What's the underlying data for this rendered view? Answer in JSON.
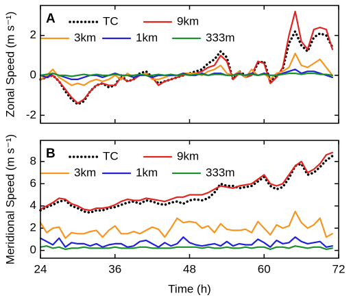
{
  "chart_data": [
    {
      "type": "line",
      "panel_label": "A",
      "ylabel": "Zonal Speed (m s⁻¹)",
      "x": [
        24,
        25,
        26,
        27,
        28,
        29,
        30,
        31,
        32,
        33,
        34,
        35,
        36,
        37,
        38,
        39,
        40,
        41,
        42,
        43,
        44,
        45,
        46,
        47,
        48,
        49,
        50,
        51,
        52,
        53,
        54,
        55,
        56,
        57,
        58,
        59,
        60,
        61,
        62,
        63,
        64,
        65,
        66,
        67,
        68,
        69,
        70,
        71
      ],
      "xlim": [
        24,
        72
      ],
      "xticks": [
        24,
        36,
        48,
        60,
        72
      ],
      "xtick_labels": false,
      "ylim": [
        -2.4,
        3.5
      ],
      "yticks": [
        -2,
        0,
        2
      ],
      "series": [
        {
          "name": "TC",
          "color": "#000000",
          "dash": "dotted",
          "values": [
            -0.2,
            -0.1,
            0.0,
            -0.3,
            -0.8,
            -1.2,
            -1.45,
            -1.3,
            -0.8,
            -0.5,
            -0.4,
            -0.6,
            -0.5,
            0.0,
            -0.3,
            -0.2,
            0.1,
            0.2,
            -0.1,
            -0.4,
            -0.3,
            -0.2,
            -0.1,
            0.0,
            0.1,
            0.2,
            0.3,
            0.6,
            0.8,
            1.2,
            0.9,
            -0.2,
            0.2,
            0.0,
            0.0,
            0.6,
            0.7,
            -0.3,
            0.0,
            0.3,
            1.6,
            2.2,
            1.5,
            1.2,
            1.9,
            2.1,
            2.0,
            1.4
          ]
        },
        {
          "name": "9km",
          "color": "#e3231f",
          "values": [
            -0.2,
            -0.1,
            0.0,
            -0.3,
            -0.7,
            -1.1,
            -1.4,
            -1.2,
            -0.8,
            -0.5,
            -0.4,
            -0.5,
            -0.5,
            -0.1,
            -0.3,
            -0.2,
            0.0,
            0.1,
            -0.1,
            -0.5,
            -0.3,
            -0.2,
            -0.1,
            0.0,
            0.1,
            0.1,
            0.2,
            0.4,
            0.5,
            1.0,
            0.7,
            -0.2,
            0.1,
            -0.1,
            0.0,
            0.7,
            0.6,
            -0.4,
            -0.1,
            0.4,
            2.0,
            3.2,
            1.7,
            1.3,
            2.3,
            2.4,
            2.3,
            1.3
          ]
        },
        {
          "name": "3km",
          "color": "#f7941d",
          "values": [
            -0.2,
            0.0,
            0.3,
            -0.1,
            -0.3,
            -0.5,
            -0.4,
            -0.5,
            -0.3,
            -0.2,
            -0.3,
            -0.2,
            0.0,
            -0.2,
            0.1,
            -0.1,
            0.0,
            0.1,
            -0.2,
            -0.2,
            -0.1,
            0.0,
            0.0,
            0.1,
            0.1,
            0.1,
            0.0,
            0.2,
            0.3,
            0.5,
            0.1,
            0.0,
            0.2,
            -0.1,
            0.3,
            0.0,
            0.1,
            -0.2,
            0.1,
            0.2,
            0.4,
            1.1,
            0.5,
            0.4,
            0.6,
            0.8,
            0.4,
            0.0
          ]
        },
        {
          "name": "1km",
          "color": "#1f22d6",
          "values": [
            0.0,
            -0.1,
            0.1,
            0.0,
            -0.1,
            -0.2,
            -0.2,
            -0.1,
            0,
            0,
            -0.1,
            0,
            0.1,
            0,
            0,
            -0.1,
            0,
            0,
            -0.1,
            0,
            0,
            0,
            0,
            0.1,
            0,
            0,
            0.1,
            0,
            0.1,
            0.1,
            0,
            0,
            0.1,
            0,
            0.1,
            0,
            0.1,
            0,
            0,
            0.1,
            0.2,
            0.3,
            0.1,
            0.2,
            0.2,
            0.1,
            0,
            -0.1
          ]
        },
        {
          "name": "333m",
          "color": "#1a8f2e",
          "values": [
            0.0,
            0.05,
            0.1,
            0,
            0,
            -0.05,
            0,
            0.05,
            0,
            0.05,
            0,
            0,
            0.05,
            0,
            0,
            0,
            0.05,
            0,
            0,
            0.05,
            0,
            0.05,
            0,
            0.05,
            0,
            0.05,
            0.05,
            0,
            0.05,
            0.05,
            0,
            0,
            0.05,
            0,
            0.05,
            0,
            0.05,
            0,
            0,
            0.05,
            0.1,
            0.1,
            0.05,
            0.1,
            0.1,
            0.05,
            0.05,
            0
          ]
        }
      ]
    },
    {
      "type": "line",
      "panel_label": "B",
      "ylabel": "Meridional Speed (m s⁻¹)",
      "xlabel": "Time (h)",
      "x": [
        24,
        25,
        26,
        27,
        28,
        29,
        30,
        31,
        32,
        33,
        34,
        35,
        36,
        37,
        38,
        39,
        40,
        41,
        42,
        43,
        44,
        45,
        46,
        47,
        48,
        49,
        50,
        51,
        52,
        53,
        54,
        55,
        56,
        57,
        58,
        59,
        60,
        61,
        62,
        63,
        64,
        65,
        66,
        67,
        68,
        69,
        70,
        71
      ],
      "xlim": [
        24,
        72
      ],
      "xticks": [
        24,
        36,
        48,
        60,
        72
      ],
      "ylim": [
        -0.7,
        9.9
      ],
      "yticks": [
        0,
        2,
        4,
        6,
        8
      ],
      "series": [
        {
          "name": "TC",
          "color": "#000000",
          "dash": "dotted",
          "values": [
            3.6,
            3.9,
            4.1,
            4.4,
            4.5,
            4.0,
            3.8,
            3.5,
            3.4,
            3.6,
            3.6,
            3.8,
            3.9,
            4.1,
            4.3,
            4.4,
            4.2,
            4.5,
            4.4,
            4.2,
            4.1,
            4.3,
            4.4,
            4.2,
            4.5,
            4.6,
            4.5,
            4.7,
            5.2,
            6.0,
            5.8,
            5.8,
            5.6,
            5.7,
            5.8,
            6.2,
            6.6,
            5.8,
            5.5,
            5.7,
            6.5,
            7.6,
            7.8,
            6.8,
            7.0,
            7.5,
            8.1,
            8.5
          ]
        },
        {
          "name": "9km",
          "color": "#e3231f",
          "values": [
            3.7,
            4.0,
            4.3,
            4.7,
            4.6,
            4.2,
            4.0,
            3.7,
            3.6,
            3.8,
            3.8,
            3.9,
            4.1,
            4.4,
            4.6,
            4.5,
            4.5,
            4.7,
            4.6,
            4.5,
            4.4,
            4.6,
            4.8,
            4.8,
            5.0,
            5.0,
            5.0,
            5.2,
            5.5,
            5.8,
            5.7,
            5.6,
            5.8,
            5.9,
            6.0,
            6.4,
            6.8,
            6.0,
            5.8,
            6.0,
            6.8,
            7.6,
            8.0,
            7.0,
            7.3,
            7.8,
            8.6,
            8.8
          ]
        },
        {
          "name": "3km",
          "color": "#f7941d",
          "values": [
            2.5,
            1.6,
            2.0,
            2.1,
            1.1,
            1.6,
            1.5,
            1.5,
            1.7,
            1.8,
            1.2,
            1.8,
            2.2,
            1.5,
            1.5,
            1.7,
            1.5,
            1.8,
            2.1,
            1.9,
            1.2,
            2.0,
            2.9,
            2.5,
            2.6,
            2.5,
            2.0,
            2.2,
            1.6,
            2.4,
            1.9,
            1.8,
            1.8,
            1.9,
            1.6,
            2.6,
            2.0,
            1.4,
            2.3,
            2.0,
            2.2,
            3.5,
            2.5,
            2.0,
            2.3,
            2.9,
            1.2,
            1.5
          ]
        },
        {
          "name": "1km",
          "color": "#1f22d6",
          "values": [
            1.1,
            0.8,
            0.5,
            1.1,
            0.3,
            0.7,
            0.6,
            0.6,
            0.4,
            0.6,
            0.3,
            0.5,
            0.6,
            0.6,
            0.3,
            0.4,
            0.8,
            0.9,
            0.6,
            0.3,
            0.7,
            0.4,
            0.6,
            1.2,
            0.7,
            0.5,
            0.4,
            0.5,
            0.6,
            0.4,
            0.8,
            0.4,
            0.6,
            0.5,
            0.5,
            1.0,
            0.7,
            0.3,
            0.9,
            0.6,
            0.7,
            1.2,
            0.8,
            0.6,
            0.7,
            0.8,
            0.3,
            0.4
          ]
        },
        {
          "name": "333m",
          "color": "#1a8f2e",
          "values": [
            0.3,
            0.4,
            0.2,
            0.3,
            0.1,
            0.2,
            0.2,
            0.3,
            0.2,
            0.2,
            0.2,
            0.2,
            0.3,
            0.2,
            0.2,
            0.2,
            0.3,
            0.3,
            0.2,
            0.2,
            0.2,
            0.2,
            0.3,
            0.3,
            0.3,
            0.3,
            0.2,
            0.3,
            0.2,
            0.2,
            0.3,
            0.2,
            0.2,
            0.3,
            0.2,
            0.3,
            0.3,
            0.1,
            0.3,
            0.3,
            0.2,
            0.4,
            0.3,
            0.2,
            0.3,
            0.3,
            0.1,
            0.2
          ]
        }
      ]
    }
  ]
}
